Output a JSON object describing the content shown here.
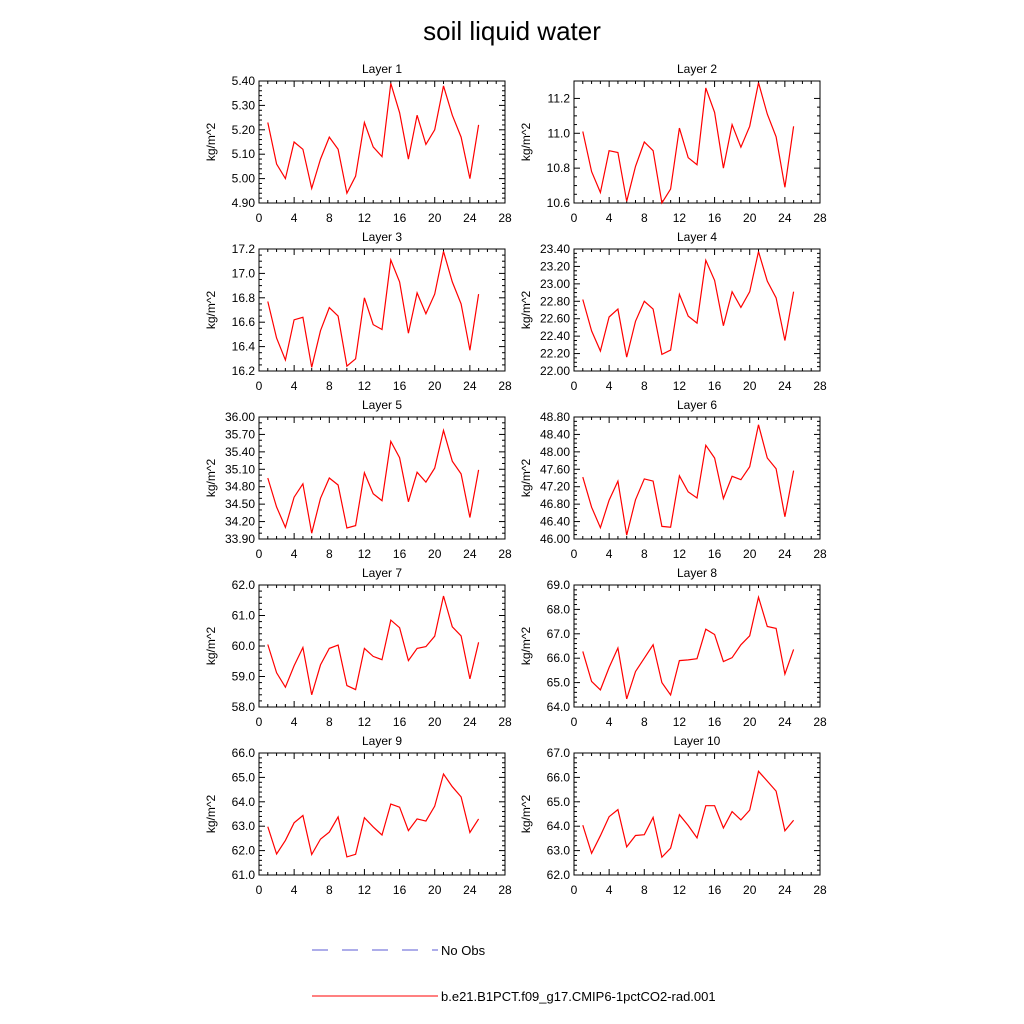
{
  "figure": {
    "title": "soil liquid water",
    "legend": [
      {
        "label": "No Obs",
        "color": "#5b5bd6",
        "style": "dashed"
      },
      {
        "label": "b.e21.B1PCT.f09_g17.CMIP6-1pctCO2-rad.001",
        "color": "#ff0000",
        "style": "solid"
      }
    ]
  },
  "chart_data": [
    {
      "type": "line",
      "title": "Layer 1",
      "ylabel": "kg/m^2",
      "xlabel": "",
      "xlim": [
        0,
        28
      ],
      "xticks": [
        0,
        4,
        8,
        12,
        16,
        20,
        24,
        28
      ],
      "ylim": [
        4.9,
        5.4
      ],
      "yticks": [
        "4.90",
        "5.00",
        "5.10",
        "5.20",
        "5.30",
        "5.40"
      ],
      "yminor": 5,
      "series": [
        {
          "color": "#ff0000",
          "x": [
            1,
            2,
            3,
            4,
            5,
            6,
            7,
            8,
            9,
            10,
            11,
            12,
            13,
            14,
            15,
            16,
            17,
            18,
            19,
            20,
            21,
            22,
            23,
            24,
            25
          ],
          "values": [
            5.23,
            5.06,
            5.0,
            5.15,
            5.12,
            4.96,
            5.08,
            5.17,
            5.12,
            4.94,
            5.01,
            5.23,
            5.13,
            5.09,
            5.39,
            5.27,
            5.08,
            5.26,
            5.14,
            5.2,
            5.38,
            5.26,
            5.17,
            5.0,
            5.22
          ]
        }
      ]
    },
    {
      "type": "line",
      "title": "Layer 2",
      "ylabel": "kg/m^2",
      "xlabel": "",
      "xlim": [
        0,
        28
      ],
      "xticks": [
        0,
        4,
        8,
        12,
        16,
        20,
        24,
        28
      ],
      "ylim": [
        10.6,
        11.3
      ],
      "yticks": [
        "10.6",
        "10.8",
        "11.0",
        "11.2"
      ],
      "yminor": 4,
      "series": [
        {
          "color": "#ff0000",
          "x": [
            1,
            2,
            3,
            4,
            5,
            6,
            7,
            8,
            9,
            10,
            11,
            12,
            13,
            14,
            15,
            16,
            17,
            18,
            19,
            20,
            21,
            22,
            23,
            24,
            25
          ],
          "values": [
            11.01,
            10.78,
            10.66,
            10.9,
            10.89,
            10.61,
            10.81,
            10.95,
            10.9,
            10.6,
            10.68,
            11.03,
            10.86,
            10.82,
            11.26,
            11.12,
            10.8,
            11.05,
            10.92,
            11.04,
            11.29,
            11.11,
            10.98,
            10.69,
            11.04
          ]
        }
      ]
    },
    {
      "type": "line",
      "title": "Layer 3",
      "ylabel": "kg/m^2",
      "xlabel": "",
      "xlim": [
        0,
        28
      ],
      "xticks": [
        0,
        4,
        8,
        12,
        16,
        20,
        24,
        28
      ],
      "ylim": [
        16.2,
        17.2
      ],
      "yticks": [
        "16.2",
        "16.4",
        "16.6",
        "16.8",
        "17.0",
        "17.2"
      ],
      "yminor": 4,
      "series": [
        {
          "color": "#ff0000",
          "x": [
            1,
            2,
            3,
            4,
            5,
            6,
            7,
            8,
            9,
            10,
            11,
            12,
            13,
            14,
            15,
            16,
            17,
            18,
            19,
            20,
            21,
            22,
            23,
            24,
            25
          ],
          "values": [
            16.77,
            16.47,
            16.29,
            16.62,
            16.64,
            16.23,
            16.53,
            16.72,
            16.65,
            16.24,
            16.3,
            16.8,
            16.58,
            16.54,
            17.11,
            16.93,
            16.51,
            16.84,
            16.67,
            16.83,
            17.18,
            16.93,
            16.75,
            16.37,
            16.83
          ]
        }
      ]
    },
    {
      "type": "line",
      "title": "Layer 4",
      "ylabel": "kg/m^2",
      "xlabel": "",
      "xlim": [
        0,
        28
      ],
      "xticks": [
        0,
        4,
        8,
        12,
        16,
        20,
        24,
        28
      ],
      "ylim": [
        22.0,
        23.4
      ],
      "yticks": [
        "22.00",
        "22.20",
        "22.40",
        "22.60",
        "22.80",
        "23.00",
        "23.20",
        "23.40"
      ],
      "yminor": 4,
      "series": [
        {
          "color": "#ff0000",
          "x": [
            1,
            2,
            3,
            4,
            5,
            6,
            7,
            8,
            9,
            10,
            11,
            12,
            13,
            14,
            15,
            16,
            17,
            18,
            19,
            20,
            21,
            22,
            23,
            24,
            25
          ],
          "values": [
            22.82,
            22.46,
            22.23,
            22.62,
            22.71,
            22.16,
            22.57,
            22.8,
            22.71,
            22.19,
            22.24,
            22.88,
            22.63,
            22.55,
            23.27,
            23.04,
            22.52,
            22.91,
            22.73,
            22.91,
            23.37,
            23.03,
            22.84,
            22.35,
            22.91
          ]
        }
      ]
    },
    {
      "type": "line",
      "title": "Layer 5",
      "ylabel": "kg/m^2",
      "xlabel": "",
      "xlim": [
        0,
        28
      ],
      "xticks": [
        0,
        4,
        8,
        12,
        16,
        20,
        24,
        28
      ],
      "ylim": [
        33.9,
        36.0
      ],
      "yticks": [
        "33.90",
        "34.20",
        "34.50",
        "34.80",
        "35.10",
        "35.40",
        "35.70",
        "36.00"
      ],
      "yminor": 3,
      "series": [
        {
          "color": "#ff0000",
          "x": [
            1,
            2,
            3,
            4,
            5,
            6,
            7,
            8,
            9,
            10,
            11,
            12,
            13,
            14,
            15,
            16,
            17,
            18,
            19,
            20,
            21,
            22,
            23,
            24,
            25
          ],
          "values": [
            34.95,
            34.45,
            34.1,
            34.62,
            34.85,
            34.0,
            34.6,
            34.95,
            34.83,
            34.09,
            34.13,
            35.04,
            34.68,
            34.56,
            35.58,
            35.3,
            34.54,
            35.05,
            34.88,
            35.12,
            35.77,
            35.24,
            35.02,
            34.27,
            35.09
          ]
        }
      ]
    },
    {
      "type": "line",
      "title": "Layer 6",
      "ylabel": "kg/m^2",
      "xlabel": "",
      "xlim": [
        0,
        28
      ],
      "xticks": [
        0,
        4,
        8,
        12,
        16,
        20,
        24,
        28
      ],
      "ylim": [
        46.0,
        48.8
      ],
      "yticks": [
        "46.00",
        "46.40",
        "46.80",
        "47.20",
        "47.60",
        "48.00",
        "48.40",
        "48.80"
      ],
      "yminor": 4,
      "series": [
        {
          "color": "#ff0000",
          "x": [
            1,
            2,
            3,
            4,
            5,
            6,
            7,
            8,
            9,
            10,
            11,
            12,
            13,
            14,
            15,
            16,
            17,
            18,
            19,
            20,
            21,
            22,
            23,
            24,
            25
          ],
          "values": [
            47.42,
            46.73,
            46.26,
            46.89,
            47.33,
            46.09,
            46.9,
            47.38,
            47.33,
            46.29,
            46.27,
            47.45,
            47.08,
            46.94,
            48.15,
            47.86,
            46.93,
            47.44,
            47.36,
            47.66,
            48.62,
            47.86,
            47.61,
            46.51,
            47.57
          ]
        }
      ]
    },
    {
      "type": "line",
      "title": "Layer 7",
      "ylabel": "kg/m^2",
      "xlabel": "",
      "xlim": [
        0,
        28
      ],
      "xticks": [
        0,
        4,
        8,
        12,
        16,
        20,
        24,
        28
      ],
      "ylim": [
        58.0,
        62.0
      ],
      "yticks": [
        "58.0",
        "59.0",
        "60.0",
        "61.0",
        "62.0"
      ],
      "yminor": 5,
      "series": [
        {
          "color": "#ff0000",
          "x": [
            1,
            2,
            3,
            4,
            5,
            6,
            7,
            8,
            9,
            10,
            11,
            12,
            13,
            14,
            15,
            16,
            17,
            18,
            19,
            20,
            21,
            22,
            23,
            24,
            25
          ],
          "values": [
            60.05,
            59.12,
            58.65,
            59.35,
            59.95,
            58.4,
            59.38,
            59.92,
            60.03,
            58.7,
            58.57,
            59.92,
            59.66,
            59.55,
            60.85,
            60.6,
            59.52,
            59.92,
            59.98,
            60.32,
            61.64,
            60.63,
            60.33,
            58.92,
            60.12
          ]
        }
      ]
    },
    {
      "type": "line",
      "title": "Layer 8",
      "ylabel": "kg/m^2",
      "xlabel": "",
      "xlim": [
        0,
        28
      ],
      "xticks": [
        0,
        4,
        8,
        12,
        16,
        20,
        24,
        28
      ],
      "ylim": [
        64.0,
        69.0
      ],
      "yticks": [
        "64.0",
        "65.0",
        "66.0",
        "67.0",
        "68.0",
        "69.0"
      ],
      "yminor": 5,
      "series": [
        {
          "color": "#ff0000",
          "x": [
            1,
            2,
            3,
            4,
            5,
            6,
            7,
            8,
            9,
            10,
            11,
            12,
            13,
            14,
            15,
            16,
            17,
            18,
            19,
            20,
            21,
            22,
            23,
            24,
            25
          ],
          "values": [
            66.28,
            65.05,
            64.7,
            65.62,
            66.42,
            64.33,
            65.45,
            66.0,
            66.55,
            65.0,
            64.49,
            65.9,
            65.93,
            65.98,
            67.19,
            66.97,
            65.86,
            66.02,
            66.55,
            66.92,
            68.5,
            67.3,
            67.22,
            65.35,
            66.36
          ]
        }
      ]
    },
    {
      "type": "line",
      "title": "Layer 9",
      "ylabel": "kg/m^2",
      "xlabel": "",
      "xlim": [
        0,
        28
      ],
      "xticks": [
        0,
        4,
        8,
        12,
        16,
        20,
        24,
        28
      ],
      "ylim": [
        61.0,
        66.0
      ],
      "yticks": [
        "61.0",
        "62.0",
        "63.0",
        "64.0",
        "65.0",
        "66.0"
      ],
      "yminor": 5,
      "series": [
        {
          "color": "#ff0000",
          "x": [
            1,
            2,
            3,
            4,
            5,
            6,
            7,
            8,
            9,
            10,
            11,
            12,
            13,
            14,
            15,
            16,
            17,
            18,
            19,
            20,
            21,
            22,
            23,
            24,
            25
          ],
          "values": [
            62.98,
            61.86,
            62.42,
            63.14,
            63.44,
            61.84,
            62.47,
            62.76,
            63.38,
            61.74,
            61.85,
            63.35,
            62.97,
            62.64,
            63.91,
            63.78,
            62.82,
            63.3,
            63.21,
            63.82,
            65.14,
            64.62,
            64.2,
            62.74,
            63.3
          ]
        }
      ]
    },
    {
      "type": "line",
      "title": "Layer 10",
      "ylabel": "kg/m^2",
      "xlabel": "",
      "xlim": [
        0,
        28
      ],
      "xticks": [
        0,
        4,
        8,
        12,
        16,
        20,
        24,
        28
      ],
      "ylim": [
        62.0,
        67.0
      ],
      "yticks": [
        "62.0",
        "63.0",
        "64.0",
        "65.0",
        "66.0",
        "67.0"
      ],
      "yminor": 5,
      "series": [
        {
          "color": "#ff0000",
          "x": [
            1,
            2,
            3,
            4,
            5,
            6,
            7,
            8,
            9,
            10,
            11,
            12,
            13,
            14,
            15,
            16,
            17,
            18,
            19,
            20,
            21,
            22,
            23,
            24,
            25
          ],
          "values": [
            64.04,
            62.89,
            63.61,
            64.39,
            64.68,
            63.15,
            63.62,
            63.65,
            64.36,
            62.73,
            63.1,
            64.47,
            64.03,
            63.52,
            64.84,
            64.84,
            63.93,
            64.6,
            64.26,
            64.66,
            66.25,
            65.85,
            65.44,
            63.81,
            64.24
          ]
        }
      ]
    }
  ]
}
